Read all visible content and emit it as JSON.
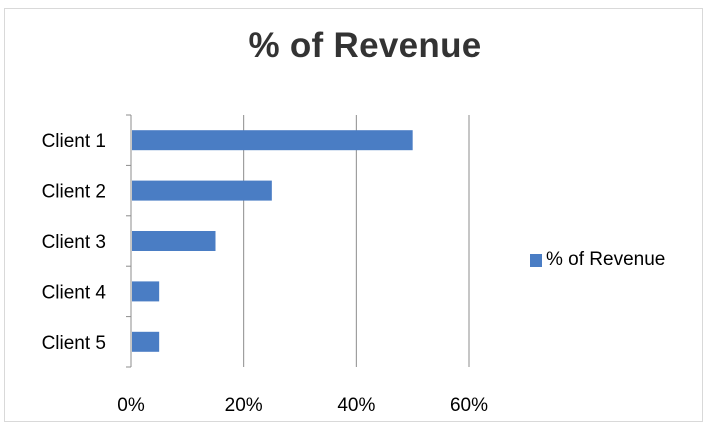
{
  "chart_data": {
    "type": "bar",
    "orientation": "horizontal",
    "title": "% of Revenue",
    "xlabel": "",
    "ylabel": "",
    "categories": [
      "Client 1",
      "Client 2",
      "Client 3",
      "Client 4",
      "Client 5"
    ],
    "series": [
      {
        "name": "% of Revenue",
        "values": [
          50,
          25,
          15,
          5,
          5
        ]
      }
    ],
    "xlim": [
      0,
      60
    ],
    "x_ticks": [
      "0%",
      "20%",
      "40%",
      "60%"
    ],
    "grid": "vertical",
    "legend_position": "right",
    "bar_color": "#4a7dc4"
  }
}
